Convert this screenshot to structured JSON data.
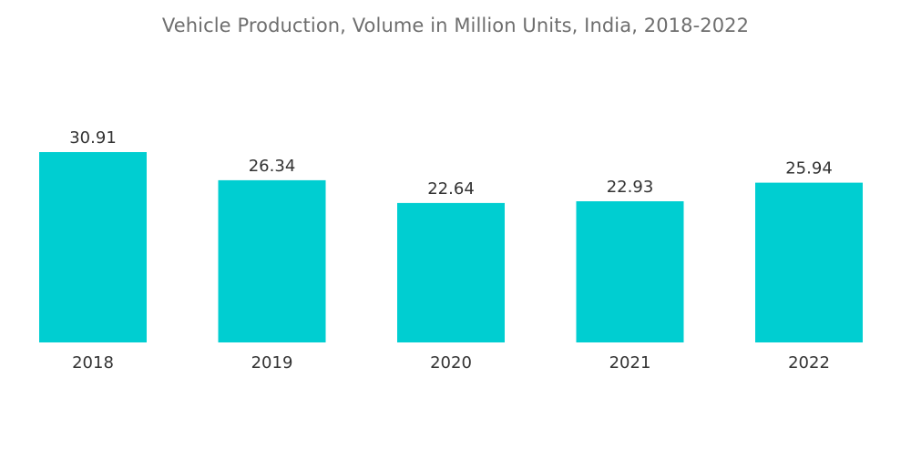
{
  "chart_data": {
    "type": "bar",
    "title": "Vehicle Production, Volume in Million Units, India, 2018-2022",
    "categories": [
      "2018",
      "2019",
      "2020",
      "2021",
      "2022"
    ],
    "values": [
      30.91,
      26.34,
      22.64,
      22.93,
      25.94
    ],
    "value_labels": [
      "30.91",
      "26.34",
      "22.64",
      "22.93",
      "25.94"
    ],
    "xlabel": "",
    "ylabel": "",
    "ylim": [
      0,
      30.91
    ],
    "grid": false,
    "legend": "none",
    "bar_color": "#00ced1"
  }
}
